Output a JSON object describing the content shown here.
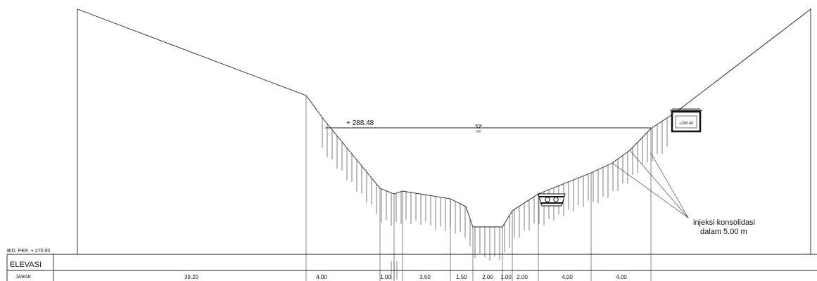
{
  "datum": "BID. PER. + 270.00",
  "water_level": "+ 288.48",
  "table": {
    "row1_label": "ELEVASI",
    "row2_label": "JARAK",
    "distances": [
      "39.20",
      "4.00",
      "1.00",
      "3.50",
      "1.50",
      "2.00",
      "1.00",
      "2.00",
      "4.00",
      "4.00"
    ]
  },
  "annotation": {
    "line1": "injeksi konsolidasi",
    "line2": "dalam 5.00 m"
  },
  "gallery_right_label": "+288.48"
}
